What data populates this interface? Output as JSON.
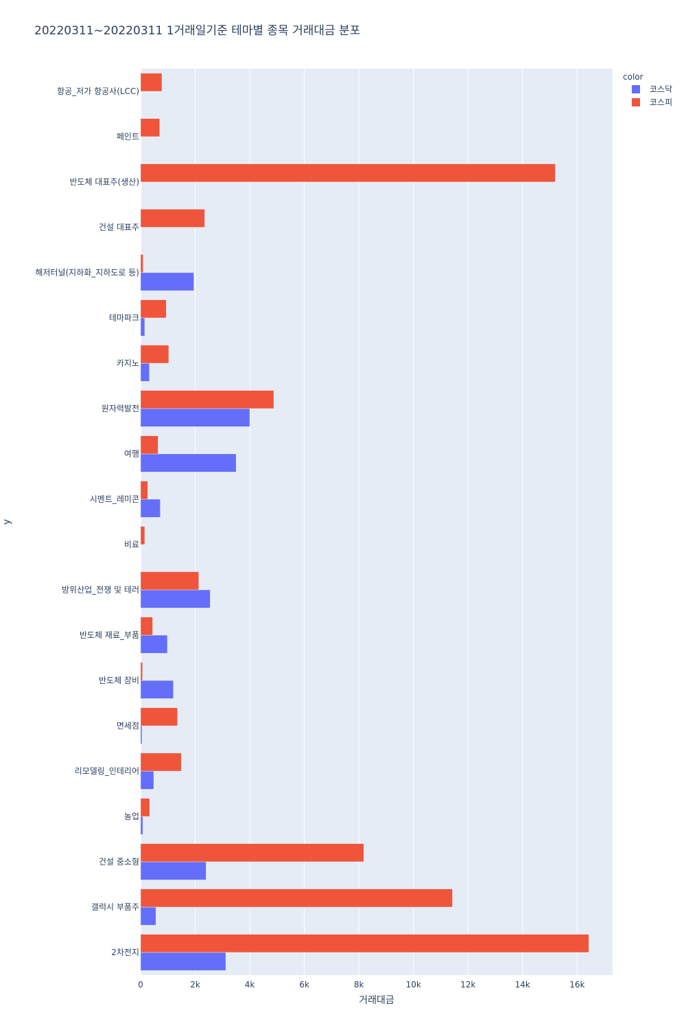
{
  "chart_data": {
    "type": "bar",
    "orientation": "horizontal",
    "barmode": "group",
    "title": "20220311~20220311 1거래일기준 테마별 종목 거래대금 분포",
    "xlabel": "거래대금",
    "ylabel": "y",
    "xlim": [
      0,
      17300
    ],
    "x_ticks": [
      0,
      2000,
      4000,
      6000,
      8000,
      10000,
      12000,
      14000,
      16000
    ],
    "x_tick_labels": [
      "0",
      "2k",
      "4k",
      "6k",
      "8k",
      "10k",
      "12k",
      "14k",
      "16k"
    ],
    "grid": true,
    "legend": {
      "title": "color",
      "position": "top-right"
    },
    "categories": [
      "항공_저가 항공사(LCC)",
      "페인트",
      "반도체 대표주(생산)",
      "건설 대표주",
      "해저터널(지하화_지하도로 등)",
      "테마파크",
      "카지노",
      "원자력발전",
      "여행",
      "시멘트_레미콘",
      "비료",
      "방위산업_전쟁 및 테러",
      "반도체 재료_부품",
      "반도체 장비",
      "면세점",
      "리모델링_인테리어",
      "농업",
      "건설 중소형",
      "갤럭시 부품주",
      "2차전지"
    ],
    "series": [
      {
        "name": "코스닥",
        "color": "#636efa",
        "values": [
          0,
          0,
          0,
          0,
          1950,
          150,
          320,
          4000,
          3500,
          720,
          0,
          2550,
          980,
          1200,
          50,
          480,
          80,
          2400,
          560,
          3120
        ]
      },
      {
        "name": "코스피",
        "color": "#ef553b",
        "values": [
          780,
          700,
          15200,
          2350,
          90,
          940,
          1030,
          4880,
          640,
          260,
          150,
          2130,
          440,
          70,
          1350,
          1490,
          330,
          8180,
          11430,
          16430
        ]
      }
    ]
  }
}
